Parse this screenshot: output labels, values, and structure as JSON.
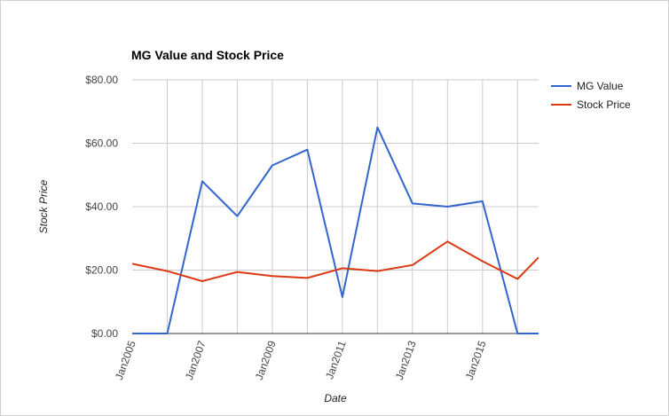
{
  "chart_data": {
    "type": "line",
    "title": "MG Value and Stock Price",
    "xlabel": "Date",
    "ylabel": "Stock Price",
    "x": [
      2005.0,
      2006.0,
      2007.0,
      2008.0,
      2009.0,
      2010.0,
      2011.0,
      2012.0,
      2013.0,
      2014.0,
      2015.0,
      2016.0,
      2016.6
    ],
    "x_ticks": [
      {
        "value": 2005,
        "label": "Jan2005"
      },
      {
        "value": 2007,
        "label": "Jan2007"
      },
      {
        "value": 2009,
        "label": "Jan2009"
      },
      {
        "value": 2011,
        "label": "Jan2011"
      },
      {
        "value": 2013,
        "label": "Jan2013"
      },
      {
        "value": 2015,
        "label": "Jan2015"
      }
    ],
    "xlim": [
      2005.0,
      2016.6
    ],
    "ylim": [
      0,
      80
    ],
    "y_ticks": [
      {
        "value": 0,
        "label": "$0.00"
      },
      {
        "value": 20,
        "label": "$20.00"
      },
      {
        "value": 40,
        "label": "$40.00"
      },
      {
        "value": 60,
        "label": "$60.00"
      },
      {
        "value": 80,
        "label": "$80.00"
      }
    ],
    "grid": true,
    "legend_position": "right",
    "series": [
      {
        "name": "MG Value",
        "color": "#3366cc",
        "x": [
          2005.0,
          2006.0,
          2007.0,
          2008.0,
          2009.0,
          2010.0,
          2011.0,
          2012.0,
          2013.0,
          2014.0,
          2015.0,
          2016.0,
          2016.6
        ],
        "values": [
          0,
          0,
          48,
          37,
          53,
          58,
          11.5,
          65,
          41,
          40,
          41.7,
          0,
          0
        ]
      },
      {
        "name": "Stock Price",
        "color": "#dc3912",
        "x": [
          2005.0,
          2006.0,
          2007.0,
          2008.0,
          2009.0,
          2010.0,
          2011.0,
          2012.0,
          2013.0,
          2014.0,
          2015.0,
          2016.0,
          2016.6
        ],
        "values": [
          22,
          19.7,
          16.5,
          19.4,
          18.1,
          17.5,
          20.6,
          19.7,
          21.6,
          29,
          22.8,
          17.2,
          24
        ]
      }
    ]
  }
}
